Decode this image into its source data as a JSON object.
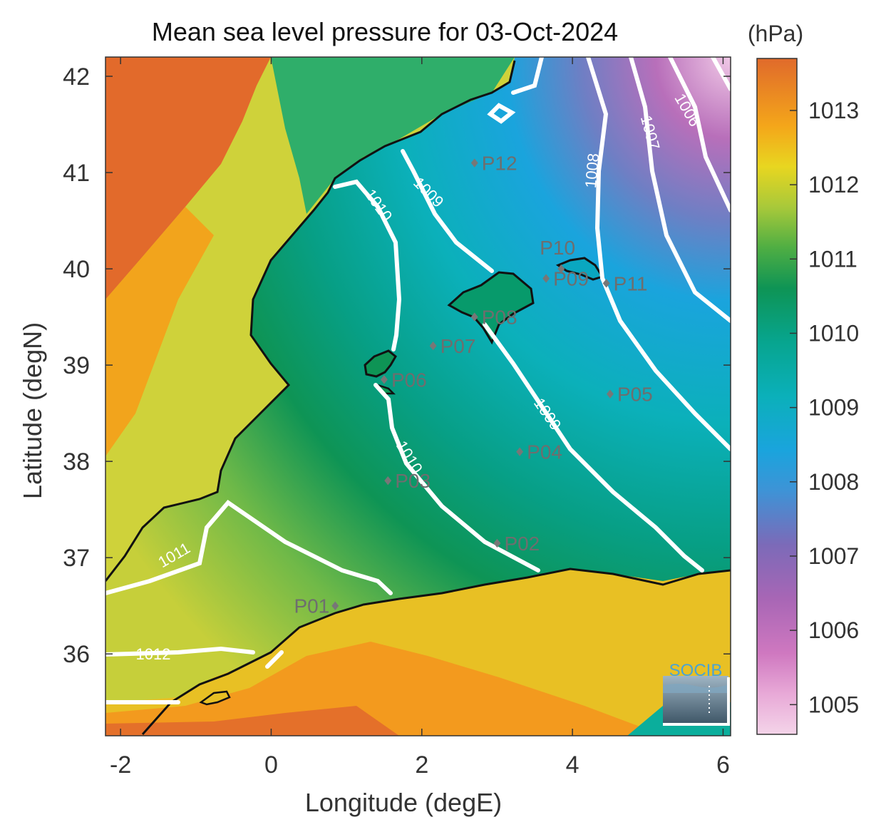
{
  "title": "Mean sea level pressure for 03-Oct-2024",
  "colorbar": {
    "unit": "(hPa)",
    "ticks": [
      1005,
      1006,
      1007,
      1008,
      1009,
      1010,
      1011,
      1012,
      1013
    ],
    "range": [
      1004.6,
      1013.7
    ],
    "colormap": [
      "#f4d4e9",
      "#cf78c0",
      "#9065b4",
      "#5a86c8",
      "#1aa4dd",
      "#0bb0ba",
      "#079f85",
      "#0e9455",
      "#4fae43",
      "#a8c93a",
      "#e8d620",
      "#f4a61a",
      "#ea7d25",
      "#e06a2b"
    ]
  },
  "xaxis": {
    "label": "Longitude (degE)",
    "range": [
      -2.2,
      6.1
    ],
    "ticks": [
      -2,
      0,
      2,
      4,
      6
    ]
  },
  "yaxis": {
    "label": "Latitude (degN)",
    "range": [
      35.15,
      42.2
    ],
    "ticks": [
      36,
      37,
      38,
      39,
      40,
      41,
      42
    ]
  },
  "logo": {
    "text": "SOCIB"
  },
  "points": [
    {
      "name": "P01",
      "lon": 0.85,
      "lat": 36.5
    },
    {
      "name": "P02",
      "lon": 3.0,
      "lat": 37.15
    },
    {
      "name": "P03",
      "lon": 1.55,
      "lat": 37.8
    },
    {
      "name": "P04",
      "lon": 3.3,
      "lat": 38.1
    },
    {
      "name": "P05",
      "lon": 4.5,
      "lat": 38.7
    },
    {
      "name": "P06",
      "lon": 1.5,
      "lat": 38.85
    },
    {
      "name": "P07",
      "lon": 2.15,
      "lat": 39.2
    },
    {
      "name": "P08",
      "lon": 2.7,
      "lat": 39.5
    },
    {
      "name": "P09",
      "lon": 3.65,
      "lat": 39.9
    },
    {
      "name": "P10",
      "lon": 3.85,
      "lat": 40.0
    },
    {
      "name": "P11",
      "lon": 4.45,
      "lat": 39.85
    },
    {
      "name": "P12",
      "lon": 2.7,
      "lat": 41.1
    }
  ],
  "contour_labels": [
    "1012",
    "1011",
    "1010",
    "1010",
    "1009",
    "1009",
    "1008",
    "1007",
    "1006"
  ]
}
